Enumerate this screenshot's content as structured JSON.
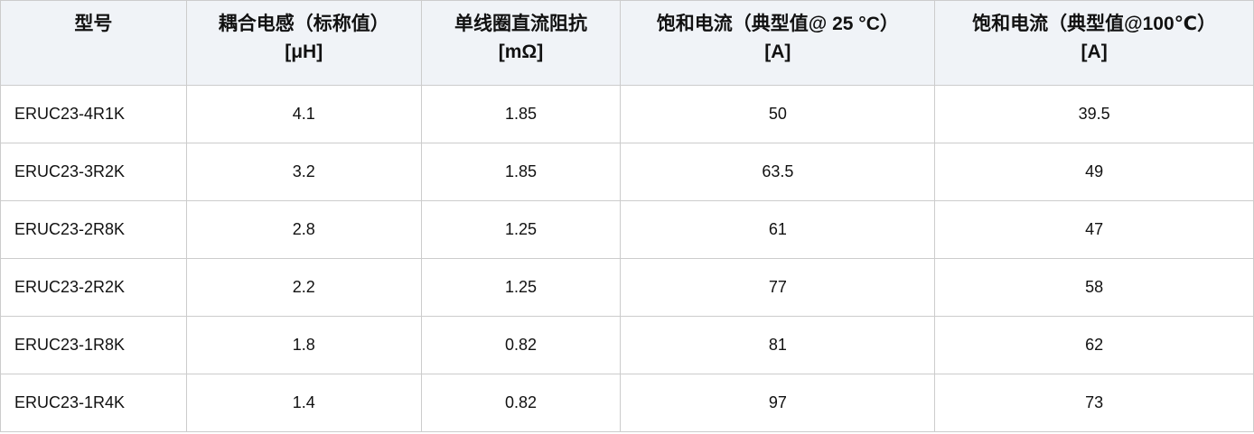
{
  "chart_data": {
    "type": "table",
    "title": "",
    "columns": [
      {
        "id": "model",
        "line1": "型号",
        "line2": ""
      },
      {
        "id": "inductance",
        "line1": "耦合电感（标称值）",
        "line2": "[μH]"
      },
      {
        "id": "dcr",
        "line1": "单线圈直流阻抗",
        "line2": "[mΩ]"
      },
      {
        "id": "isat25",
        "line1": "饱和电流（典型值@ 25 °C）",
        "line2": "[A]"
      },
      {
        "id": "isat100",
        "line1": "饱和电流（典型值@100℃）",
        "line2": "[A]"
      }
    ],
    "rows": [
      {
        "model": "ERUC23-4R1K",
        "inductance": "4.1",
        "dcr": "1.85",
        "isat25": "50",
        "isat100": "39.5"
      },
      {
        "model": "ERUC23-3R2K",
        "inductance": "3.2",
        "dcr": "1.85",
        "isat25": "63.5",
        "isat100": "49"
      },
      {
        "model": "ERUC23-2R8K",
        "inductance": "2.8",
        "dcr": "1.25",
        "isat25": "61",
        "isat100": "47"
      },
      {
        "model": "ERUC23-2R2K",
        "inductance": "2.2",
        "dcr": "1.25",
        "isat25": "77",
        "isat100": "58"
      },
      {
        "model": "ERUC23-1R8K",
        "inductance": "1.8",
        "dcr": "0.82",
        "isat25": "81",
        "isat100": "62"
      },
      {
        "model": "ERUC23-1R4K",
        "inductance": "1.4",
        "dcr": "0.82",
        "isat25": "97",
        "isat100": "73"
      }
    ],
    "layout": {
      "grid": "on",
      "header_background": "#f0f3f7",
      "border_color": "#cccccc",
      "text_color": "#111111"
    }
  }
}
